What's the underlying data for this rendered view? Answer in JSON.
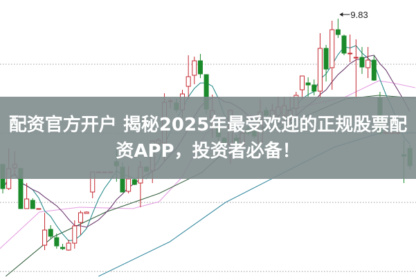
{
  "headline": {
    "line1": "配资官方开户 揭秘2025年最受欢迎的正规股票配",
    "line2": "资APP，投资者必备！"
  },
  "chart_data": {
    "type": "candlestick",
    "title": "",
    "xlabel": "",
    "ylabel": "",
    "grid": "horizontal dotted",
    "ylim": [
      7.95,
      9.92
    ],
    "gridlines": [
      9.5,
      9.0,
      8.5,
      8.0
    ],
    "annotation": {
      "text": "9.83",
      "index": 56,
      "value": 9.83
    },
    "colors": {
      "up": "#c4262e",
      "down": "#1b8a2b",
      "ma5": "#2b8c8c",
      "ma10": "#6b3a6e",
      "pink": "#e49ce0",
      "darkgreen": "#35603e",
      "long": "#3a8ca2"
    },
    "candles": [
      {
        "o": 8.775,
        "h": 8.775,
        "l": 8.565,
        "c": 8.6
      },
      {
        "o": 8.6,
        "h": 8.89,
        "l": 8.59,
        "c": 8.745
      },
      {
        "o": 8.75,
        "h": 8.87,
        "l": 8.69,
        "c": 8.775
      },
      {
        "o": 8.745,
        "h": 8.745,
        "l": 8.455,
        "c": 8.455
      },
      {
        "o": 8.455,
        "h": 8.64,
        "l": 8.455,
        "c": 8.525
      },
      {
        "o": 8.515,
        "h": 8.53,
        "l": 8.455,
        "c": 8.455
      },
      {
        "o": 8.45,
        "h": 8.455,
        "l": 8.45,
        "c": 8.455
      },
      {
        "o": 8.19,
        "h": 8.425,
        "l": 8.155,
        "c": 8.3
      },
      {
        "o": 8.305,
        "h": 8.335,
        "l": 8.24,
        "c": 8.255
      },
      {
        "o": 8.245,
        "h": 8.275,
        "l": 8.165,
        "c": 8.185
      },
      {
        "o": 8.175,
        "h": 8.2,
        "l": 8.155,
        "c": 8.165
      },
      {
        "o": 8.155,
        "h": 8.23,
        "l": 8.15,
        "c": 8.205
      },
      {
        "o": 8.205,
        "h": 8.37,
        "l": 8.165,
        "c": 8.33
      },
      {
        "o": 8.355,
        "h": 8.44,
        "l": 8.265,
        "c": 8.425
      },
      {
        "o": 8.42,
        "h": 8.435,
        "l": 8.42,
        "c": 8.43
      },
      {
        "o": 8.575,
        "h": 8.72,
        "l": 8.53,
        "c": 8.72
      },
      {
        "o": 8.72,
        "h": 8.72,
        "l": 8.72,
        "c": 8.72
      },
      {
        "o": 8.72,
        "h": 8.72,
        "l": 8.72,
        "c": 8.72
      },
      {
        "o": 8.72,
        "h": 8.72,
        "l": 8.72,
        "c": 8.72
      },
      {
        "o": 8.795,
        "h": 8.885,
        "l": 8.65,
        "c": 8.765
      },
      {
        "o": 8.755,
        "h": 8.79,
        "l": 8.575,
        "c": 8.575
      },
      {
        "o": 8.58,
        "h": 8.76,
        "l": 8.565,
        "c": 8.67
      },
      {
        "o": 8.665,
        "h": 8.675,
        "l": 8.625,
        "c": 8.63
      },
      {
        "o": 8.64,
        "h": 8.8,
        "l": 8.465,
        "c": 8.755
      },
      {
        "o": 8.755,
        "h": 8.765,
        "l": 8.715,
        "c": 8.725
      },
      {
        "o": 8.73,
        "h": 8.95,
        "l": 8.64,
        "c": 8.945
      },
      {
        "o": 8.925,
        "h": 8.965,
        "l": 8.915,
        "c": 8.95
      },
      {
        "o": 8.93,
        "h": 9.29,
        "l": 8.8,
        "c": 9.225
      },
      {
        "o": 9.23,
        "h": 9.25,
        "l": 9.18,
        "c": 9.235
      },
      {
        "o": 9.22,
        "h": 9.25,
        "l": 9.15,
        "c": 9.17
      },
      {
        "o": 9.17,
        "h": 9.315,
        "l": 9.115,
        "c": 9.285
      },
      {
        "o": 9.34,
        "h": 9.565,
        "l": 9.25,
        "c": 9.41
      },
      {
        "o": 9.42,
        "h": 9.555,
        "l": 9.355,
        "c": 9.525
      },
      {
        "o": 9.525,
        "h": 9.575,
        "l": 9.4,
        "c": 9.43
      },
      {
        "o": 9.425,
        "h": 9.425,
        "l": 9.14,
        "c": 9.175
      },
      {
        "o": 9.115,
        "h": 9.28,
        "l": 8.965,
        "c": 9.165
      },
      {
        "o": 9.05,
        "h": 9.1,
        "l": 8.925,
        "c": 8.975
      },
      {
        "o": 8.965,
        "h": 8.975,
        "l": 8.905,
        "c": 8.915
      },
      {
        "o": 8.915,
        "h": 9.175,
        "l": 8.78,
        "c": 9.165
      },
      {
        "o": 8.965,
        "h": 8.99,
        "l": 8.915,
        "c": 8.93
      },
      {
        "o": 8.915,
        "h": 9.015,
        "l": 8.89,
        "c": 9.0
      },
      {
        "o": 9.03,
        "h": 9.05,
        "l": 8.985,
        "c": 9.0
      },
      {
        "o": 9.015,
        "h": 9.03,
        "l": 8.965,
        "c": 8.98
      },
      {
        "o": 8.93,
        "h": 9.25,
        "l": 8.915,
        "c": 9.155
      },
      {
        "o": 9.165,
        "h": 9.19,
        "l": 9.105,
        "c": 9.13
      },
      {
        "o": 9.115,
        "h": 9.215,
        "l": 9.09,
        "c": 9.165
      },
      {
        "o": 9.13,
        "h": 9.265,
        "l": 9.115,
        "c": 9.19
      },
      {
        "o": 9.13,
        "h": 9.265,
        "l": 9.115,
        "c": 9.2
      },
      {
        "o": 9.1,
        "h": 9.265,
        "l": 9.08,
        "c": 9.165
      },
      {
        "o": 9.18,
        "h": 9.3,
        "l": 9.13,
        "c": 9.275
      },
      {
        "o": 9.315,
        "h": 9.415,
        "l": 9.25,
        "c": 9.415
      },
      {
        "o": 9.365,
        "h": 9.405,
        "l": 9.265,
        "c": 9.35
      },
      {
        "o": 9.35,
        "h": 9.39,
        "l": 9.275,
        "c": 9.305
      },
      {
        "o": 9.305,
        "h": 9.725,
        "l": 9.255,
        "c": 9.615
      },
      {
        "o": 9.615,
        "h": 9.64,
        "l": 9.375,
        "c": 9.465
      },
      {
        "o": 9.475,
        "h": 9.815,
        "l": 9.315,
        "c": 9.75
      },
      {
        "o": 9.75,
        "h": 9.83,
        "l": 9.69,
        "c": 9.715
      },
      {
        "o": 9.705,
        "h": 9.715,
        "l": 9.565,
        "c": 9.58
      },
      {
        "o": 9.575,
        "h": 9.715,
        "l": 9.515,
        "c": 9.58
      },
      {
        "o": 9.545,
        "h": 9.68,
        "l": 9.265,
        "c": 9.55
      },
      {
        "o": 9.55,
        "h": 9.625,
        "l": 9.43,
        "c": 9.48
      },
      {
        "o": 9.475,
        "h": 9.625,
        "l": 9.4,
        "c": 9.53
      },
      {
        "o": 9.53,
        "h": 9.565,
        "l": 9.38,
        "c": 9.385
      },
      {
        "o": 9.255,
        "h": 9.3,
        "l": 8.99,
        "c": 9.0
      },
      {
        "o": 9.0,
        "h": 9.01,
        "l": 8.995,
        "c": 9.005
      },
      {
        "o": 9.0,
        "h": 9.01,
        "l": 8.995,
        "c": 9.005
      },
      {
        "o": 9.0,
        "h": 9.01,
        "l": 8.995,
        "c": 9.005
      },
      {
        "o": 8.845,
        "h": 8.95,
        "l": 8.64,
        "c": 8.835
      },
      {
        "o": 8.89,
        "h": 8.915,
        "l": 8.74,
        "c": 8.765
      }
    ],
    "computed_lines": [
      "ma5",
      "ma10"
    ],
    "lines": [
      {
        "key": "pink",
        "points": [
          [
            -0.5,
            8.165
          ],
          [
            6.1,
            8.43
          ],
          [
            12.8,
            8.465
          ],
          [
            21.7,
            8.455
          ],
          [
            26.1,
            8.505
          ],
          [
            29.9,
            8.68
          ],
          [
            33.9,
            9.0
          ],
          [
            37.7,
            9.115
          ],
          [
            44.6,
            9.14
          ],
          [
            45.8,
            9.15
          ],
          [
            57.3,
            9.265
          ],
          [
            62.8,
            9.38
          ],
          [
            65.1,
            9.365
          ],
          [
            68.9,
            9.33
          ]
        ]
      },
      {
        "key": "darkgreen",
        "points": [
          [
            0.5,
            7.965
          ],
          [
            8.4,
            8.25
          ],
          [
            17.2,
            8.43
          ],
          [
            26.1,
            8.565
          ],
          [
            33.2,
            8.715
          ],
          [
            40.8,
            9.015
          ],
          [
            45.8,
            9.03
          ],
          [
            53.5,
            9.18
          ],
          [
            57.3,
            9.25
          ],
          [
            62.8,
            9.275
          ],
          [
            68.9,
            9.255
          ]
        ]
      },
      {
        "key": "long",
        "points": [
          [
            16,
            7.965
          ],
          [
            27.9,
            8.215
          ],
          [
            37.2,
            8.5
          ],
          [
            46.9,
            8.715
          ],
          [
            55.4,
            8.9
          ],
          [
            62.8,
            9.0
          ],
          [
            68.9,
            9.005
          ]
        ]
      }
    ]
  }
}
